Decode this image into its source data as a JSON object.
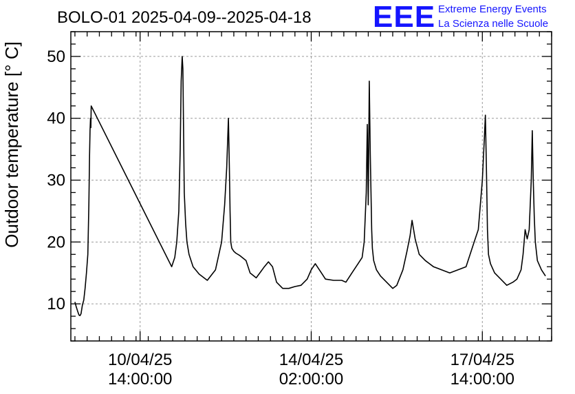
{
  "header": {
    "title": "BOLO-01 2025-04-09--2025-04-18",
    "logo_mark": "EEE",
    "logo_line1": "Extreme Energy Events",
    "logo_line2": "La Scienza nelle Scuole",
    "logo_color": "#1515ff"
  },
  "chart_data": {
    "type": "line",
    "title": "BOLO-01 2025-04-09--2025-04-18",
    "ylabel": "Outdoor temperature [° C]",
    "xlabel": "",
    "ylim": [
      4,
      54
    ],
    "yticks": [
      10,
      20,
      30,
      40,
      50
    ],
    "xlim": [
      "2025-04-09 04:00",
      "2025-04-19 00:00"
    ],
    "xticks": [
      {
        "x": "2025-04-10 14:00",
        "date": "10/04/25",
        "time": "14:00:00"
      },
      {
        "x": "2025-04-14 02:00",
        "date": "14/04/25",
        "time": "02:00:00"
      },
      {
        "x": "2025-04-17 14:00",
        "date": "17/04/25",
        "time": "14:00:00"
      }
    ],
    "grid": true,
    "line_color": "#000000",
    "series": [
      {
        "x": [
          "2025-04-09 06:00",
          "2025-04-09 06:40",
          "2025-04-09 07:20",
          "2025-04-09 08:00",
          "2025-04-09 08:30",
          "2025-04-09 09:00",
          "2025-04-09 09:40",
          "2025-04-09 10:20",
          "2025-04-09 11:00",
          "2025-04-09 11:40",
          "2025-04-09 12:20",
          "2025-04-09 12:50",
          "2025-04-09 13:10",
          "2025-04-09 13:25",
          "2025-04-09 13:40",
          "2025-04-09 13:50",
          "2025-04-09 14:00",
          "2025-04-11 05:30",
          "2025-04-11 07:00",
          "2025-04-11 08:00",
          "2025-04-11 09:00",
          "2025-04-11 09:40",
          "2025-04-11 10:10",
          "2025-04-11 10:40",
          "2025-04-11 11:00",
          "2025-04-11 11:20",
          "2025-04-11 11:40",
          "2025-04-11 12:20",
          "2025-04-11 13:00",
          "2025-04-11 14:00",
          "2025-04-11 16:00",
          "2025-04-11 19:00",
          "2025-04-11 23:00",
          "2025-04-12 03:00",
          "2025-04-12 06:00",
          "2025-04-12 07:30",
          "2025-04-12 08:30",
          "2025-04-12 09:20",
          "2025-04-12 09:50",
          "2025-04-12 10:10",
          "2025-04-12 10:30",
          "2025-04-12 11:00",
          "2025-04-12 12:00",
          "2025-04-12 13:00",
          "2025-04-12 15:00",
          "2025-04-12 18:00",
          "2025-04-12 20:00",
          "2025-04-12 23:00",
          "2025-04-13 03:00",
          "2025-04-13 05:00",
          "2025-04-13 07:00",
          "2025-04-13 09:00",
          "2025-04-13 12:00",
          "2025-04-13 15:00",
          "2025-04-13 18:00",
          "2025-04-13 21:00",
          "2025-04-14 00:00",
          "2025-04-14 02:00",
          "2025-04-14 04:00",
          "2025-04-14 07:00",
          "2025-04-14 09:00",
          "2025-04-14 13:00",
          "2025-04-14 17:00",
          "2025-04-14 19:00",
          "2025-04-14 22:00",
          "2025-04-15 01:00",
          "2025-04-15 03:00",
          "2025-04-15 04:00",
          "2025-04-15 05:00",
          "2025-04-15 05:30",
          "2025-04-15 06:00",
          "2025-04-15 06:30",
          "2025-04-15 07:00",
          "2025-04-15 07:20",
          "2025-04-15 07:40",
          "2025-04-15 08:00",
          "2025-04-15 08:40",
          "2025-04-15 10:00",
          "2025-04-15 12:00",
          "2025-04-15 15:00",
          "2025-04-15 18:00",
          "2025-04-15 20:00",
          "2025-04-15 23:00",
          "2025-04-16 01:00",
          "2025-04-16 02:30",
          "2025-04-16 03:30",
          "2025-04-16 05:00",
          "2025-04-16 07:00",
          "2025-04-16 10:00",
          "2025-04-16 14:00",
          "2025-04-16 18:00",
          "2025-04-16 22:00",
          "2025-04-17 02:00",
          "2025-04-17 06:00",
          "2025-04-17 08:00",
          "2025-04-17 10:00",
          "2025-04-17 12:00",
          "2025-04-17 14:00",
          "2025-04-17 15:00",
          "2025-04-17 15:30",
          "2025-04-17 16:00",
          "2025-04-17 16:30",
          "2025-04-17 17:00",
          "2025-04-17 18:00",
          "2025-04-17 20:00",
          "2025-04-17 23:00",
          "2025-04-18 02:00",
          "2025-04-18 05:00",
          "2025-04-18 07:00",
          "2025-04-18 09:00",
          "2025-04-18 10:00",
          "2025-04-18 11:00",
          "2025-04-18 12:00",
          "2025-04-18 13:00",
          "2025-04-18 14:00",
          "2025-04-18 14:30",
          "2025-04-18 15:00",
          "2025-04-18 15:30",
          "2025-04-18 16:00",
          "2025-04-18 17:00",
          "2025-04-18 19:00",
          "2025-04-18 21:00"
        ],
        "values": [
          10.3,
          9.5,
          8.8,
          8.2,
          8.1,
          8.4,
          9.8,
          10.6,
          12.5,
          15.0,
          18.0,
          26.0,
          34.0,
          38.0,
          40.0,
          38.5,
          42.0,
          16.0,
          17.5,
          20.0,
          25.0,
          35.0,
          46.0,
          50.0,
          48.0,
          38.0,
          28.0,
          23.0,
          20.0,
          18.0,
          16.0,
          14.8,
          13.8,
          15.5,
          20.0,
          26.0,
          32.0,
          40.0,
          32.0,
          25.0,
          20.0,
          19.0,
          18.5,
          18.2,
          17.8,
          17.0,
          15.0,
          14.2,
          16.0,
          16.8,
          16.0,
          13.5,
          12.5,
          12.5,
          12.8,
          13.0,
          14.0,
          15.5,
          16.5,
          15.0,
          14.0,
          13.8,
          13.8,
          13.5,
          15.0,
          16.5,
          17.5,
          20.0,
          28.0,
          39.0,
          26.0,
          46.0,
          34.0,
          28.0,
          22.0,
          19.0,
          17.0,
          15.5,
          14.5,
          13.5,
          12.5,
          13.0,
          15.5,
          18.5,
          21.0,
          23.5,
          20.5,
          18.0,
          17.0,
          16.0,
          15.5,
          15.0,
          15.5,
          16.0,
          18.0,
          20.0,
          22.0,
          30.0,
          37.0,
          40.5,
          32.0,
          22.0,
          18.0,
          16.5,
          15.0,
          14.0,
          13.0,
          13.5,
          14.0,
          15.5,
          18.0,
          22.0,
          20.5,
          22.0,
          30.0,
          38.0,
          30.0,
          24.0,
          20.0,
          17.0,
          15.5,
          14.5
        ]
      }
    ]
  }
}
